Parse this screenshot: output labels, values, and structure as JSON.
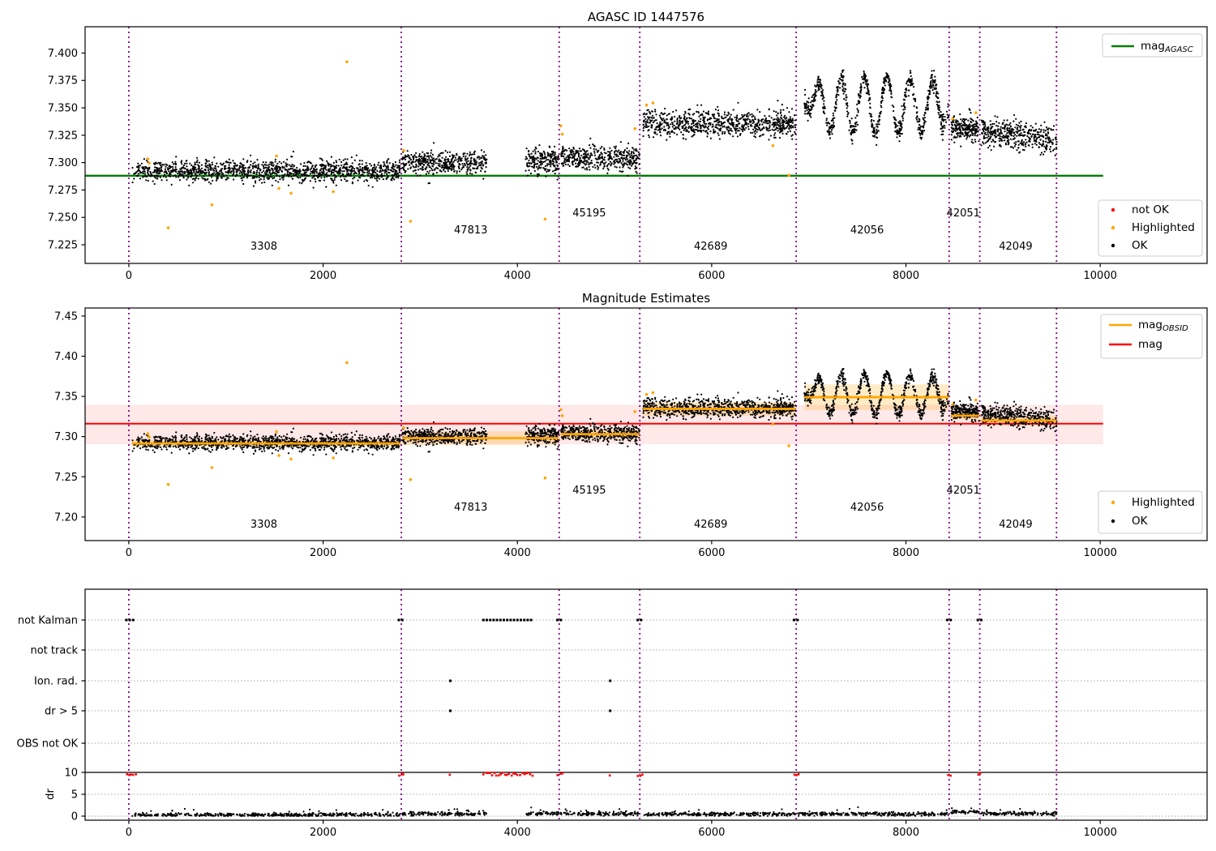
{
  "figure_title": "AGASC ID 1447576",
  "colors": {
    "ok": "#000000",
    "not_ok": "#ff0000",
    "highlighted": "#ffa500",
    "mag_agasc_line": "#007d00",
    "mag_obsid_line": "#ffa500",
    "mag_line": "#ff0000",
    "mag_band": "rgba(255,0,0,0.09)",
    "obsid_band": "rgba(255,165,0,0.22)",
    "boundary_line": "#8b008b",
    "grid_dotted": "#aaaaaa",
    "spine": "#000000"
  },
  "x_axis": {
    "xlim": [
      -450,
      11100
    ],
    "xticks": [
      0,
      2000,
      4000,
      6000,
      8000,
      10000
    ],
    "xtick_labels": [
      "0",
      "2000",
      "4000",
      "6000",
      "8000",
      "10000"
    ]
  },
  "observation_boundaries": [
    0,
    2805,
    4430,
    5260,
    6870,
    8445,
    8760,
    9550
  ],
  "observations": [
    {
      "obsid": "3308",
      "label_x": 1390,
      "level": 0
    },
    {
      "obsid": "47813",
      "label_x": 3520,
      "level": 1
    },
    {
      "obsid": "45195",
      "label_x": 4740,
      "level": 2
    },
    {
      "obsid": "42689",
      "label_x": 5990,
      "level": 0
    },
    {
      "obsid": "42056",
      "label_x": 7600,
      "level": 1
    },
    {
      "obsid": "42051",
      "label_x": 8590,
      "level": 2
    },
    {
      "obsid": "42049",
      "label_x": 9130,
      "level": 0
    }
  ],
  "chart_data": [
    {
      "type": "scatter",
      "title": "AGASC ID 1447576",
      "ylim": [
        7.208,
        7.424
      ],
      "yticks": [
        7.225,
        7.25,
        7.275,
        7.3,
        7.325,
        7.35,
        7.375,
        7.4
      ],
      "ytick_labels": [
        "7.225",
        "7.250",
        "7.275",
        "7.300",
        "7.325",
        "7.350",
        "7.375",
        "7.400"
      ],
      "mag_agasc": 7.288,
      "line_span_x": [
        -450,
        10030
      ],
      "legend_line": {
        "prefix": "mag",
        "sub": "AGASC"
      },
      "legend_markers": [
        {
          "label": "not OK",
          "color": "#ff0000"
        },
        {
          "label": "Highlighted",
          "color": "#ffa500"
        },
        {
          "label": "OK",
          "color": "#000000"
        }
      ],
      "segments": [
        {
          "obsid": "3308",
          "x": [
            30,
            2795
          ],
          "mean": 7.2925,
          "sigma": 0.0045,
          "n": 1300
        },
        {
          "obsid": "47813a",
          "x": [
            2815,
            3690
          ],
          "mean": 7.3,
          "sigma": 0.005,
          "n": 450
        },
        {
          "obsid": "47813b",
          "x": [
            4085,
            4428
          ],
          "mean": 7.3015,
          "sigma": 0.0055,
          "n": 200
        },
        {
          "obsid": "45195",
          "x": [
            4445,
            5255
          ],
          "mean": 7.304,
          "sigma": 0.005,
          "n": 420
        },
        {
          "obsid": "42689",
          "x": [
            5295,
            6862
          ],
          "mean": 7.3355,
          "sigma": 0.0055,
          "n": 800
        },
        {
          "obsid": "42056",
          "x": [
            6955,
            8442
          ],
          "mean": 7.3525,
          "sigma": 0.004,
          "n": 800,
          "wave": {
            "amp": 0.026,
            "period": 235,
            "phase_x": 7040,
            "ramp": 170
          }
        },
        {
          "obsid": "42051",
          "x": [
            8465,
            8755
          ],
          "mean": 7.331,
          "sigma": 0.005,
          "n": 220
        },
        {
          "obsid": "42049",
          "x": [
            8775,
            9552
          ],
          "mean": 7.3245,
          "sigma": 0.0062,
          "n": 430,
          "trend": -0.007
        }
      ],
      "highlighted_points": [
        [
          195,
          7.3035
        ],
        [
          210,
          7.2995
        ],
        [
          405,
          7.2405
        ],
        [
          855,
          7.2615
        ],
        [
          1520,
          7.306
        ],
        [
          1545,
          7.2765
        ],
        [
          1670,
          7.272
        ],
        [
          2105,
          7.2735
        ],
        [
          2245,
          7.392
        ],
        [
          2830,
          7.311
        ],
        [
          2900,
          7.2465
        ],
        [
          4285,
          7.2485
        ],
        [
          4448,
          7.3335
        ],
        [
          4462,
          7.326
        ],
        [
          5210,
          7.331
        ],
        [
          5330,
          7.3525
        ],
        [
          5395,
          7.3545
        ],
        [
          6630,
          7.3155
        ],
        [
          6795,
          7.2885
        ],
        [
          8480,
          7.34
        ],
        [
          8720,
          7.3455
        ]
      ]
    },
    {
      "type": "scatter",
      "title": "Magnitude Estimates",
      "ylim": [
        7.1706,
        7.46
      ],
      "yticks": [
        7.2,
        7.25,
        7.3,
        7.35,
        7.4,
        7.45
      ],
      "ytick_labels": [
        "7.20",
        "7.25",
        "7.30",
        "7.35",
        "7.40",
        "7.45"
      ],
      "mag": 7.316,
      "mag_band": [
        7.2905,
        7.3395
      ],
      "line_span_x": [
        -450,
        10030
      ],
      "same_points_as_top": true,
      "obsid_steps": [
        {
          "obsid": "3308",
          "x": [
            30,
            2795
          ],
          "y": 7.2915,
          "band_halfwidth": 0.0045
        },
        {
          "obsid": "47813",
          "x": [
            2815,
            4428
          ],
          "y": 7.298,
          "band_halfwidth": 0.0085
        },
        {
          "obsid": "45195",
          "x": [
            4445,
            5255
          ],
          "y": 7.303,
          "band_halfwidth": 0.006
        },
        {
          "obsid": "42689",
          "x": [
            5295,
            6862
          ],
          "y": 7.3345,
          "band_halfwidth": 0.0085
        },
        {
          "obsid": "42056",
          "x": [
            6955,
            8442
          ],
          "y": 7.349,
          "band_halfwidth": 0.016
        },
        {
          "obsid": "42051",
          "x": [
            8465,
            8755
          ],
          "y": 7.326,
          "band_halfwidth": 0.005
        },
        {
          "obsid": "42049",
          "x": [
            8775,
            9552
          ],
          "y": 7.32,
          "band_halfwidth": 0.006
        }
      ],
      "legend_lines": [
        {
          "prefix": "mag",
          "sub": "OBSID",
          "color": "#ffa500"
        },
        {
          "prefix": "mag",
          "sub": "",
          "color": "#ff0000"
        }
      ],
      "legend_markers": [
        {
          "label": "Highlighted",
          "color": "#ffa500"
        },
        {
          "label": "OK",
          "color": "#000000"
        }
      ]
    },
    {
      "type": "flags",
      "rows": [
        "not Kalman",
        "not track",
        "Ion. rad.",
        "dr > 5",
        "OBS not OK"
      ],
      "dr_axis": {
        "label": "dr",
        "ticks": [
          10,
          5,
          0
        ],
        "tick_labels": [
          "10",
          "5",
          "0"
        ],
        "clip_line": 10
      },
      "not_kalman_spans": [
        [
          -25,
          65
        ],
        [
          2780,
          2830
        ],
        [
          3650,
          4150
        ],
        [
          4412,
          4452
        ],
        [
          5238,
          5290
        ],
        [
          6848,
          6894
        ],
        [
          8425,
          8468
        ],
        [
          8740,
          8780
        ]
      ],
      "not_track_x": [],
      "ion_rad_x": [
        3310,
        4955
      ],
      "dr_gt5_x": [
        3310,
        4955
      ],
      "obs_not_ok_x": [],
      "dr_red_spans": [
        [
          -25,
          65
        ],
        [
          2780,
          2835
        ],
        [
          3295,
          3315
        ],
        [
          3650,
          4150
        ],
        [
          4412,
          4458
        ],
        [
          4945,
          4965
        ],
        [
          5238,
          5292
        ],
        [
          6848,
          6896
        ],
        [
          8425,
          8468
        ],
        [
          8740,
          8780
        ]
      ],
      "dr_black_segments": [
        {
          "x": [
            30,
            2795
          ],
          "dr": 0.3
        },
        {
          "x": [
            2815,
            3688
          ],
          "dr": 0.55
        },
        {
          "x": [
            4085,
            4428
          ],
          "dr": 0.65
        },
        {
          "x": [
            4445,
            5255
          ],
          "dr": 0.55
        },
        {
          "x": [
            5295,
            6860
          ],
          "dr": 0.45
        },
        {
          "x": [
            6880,
            8442
          ],
          "dr": 0.5
        },
        {
          "x": [
            8465,
            8755
          ],
          "dr": 0.95
        },
        {
          "x": [
            8775,
            9552
          ],
          "dr": 0.6
        }
      ]
    }
  ]
}
